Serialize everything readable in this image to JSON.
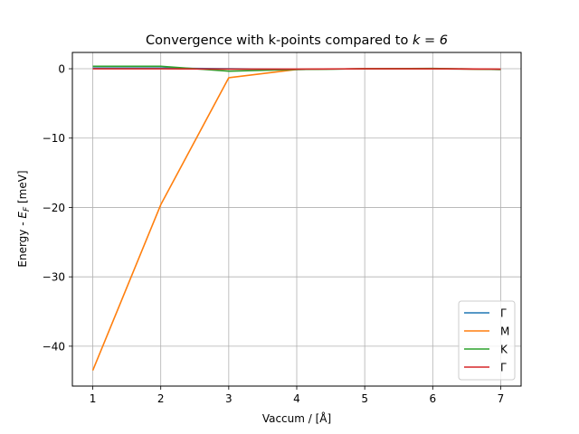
{
  "chart_data": {
    "type": "line",
    "title_prefix": "Convergence with k-points compared to ",
    "title_math": "k = 6",
    "xlabel": "Vaccum / [Å]",
    "ylabel_prefix": "Energy - ",
    "ylabel_math": "E",
    "ylabel_sub": "F",
    "ylabel_suffix": " [meV]",
    "xlim": [
      0.7,
      7.3
    ],
    "ylim": [
      -45.75,
      2.35
    ],
    "xticks": [
      1,
      2,
      3,
      4,
      5,
      6,
      7
    ],
    "yticks": [
      0,
      -10,
      -20,
      -30,
      -40
    ],
    "ytick_labels": [
      "0",
      "−10",
      "−20",
      "−30",
      "−40"
    ],
    "grid": true,
    "legend_position": "lower-right",
    "x": [
      1,
      2,
      3,
      4,
      5,
      6,
      7
    ],
    "series": [
      {
        "name": "Γ",
        "color": "#1f77b4",
        "values": [
          0.1,
          0.1,
          0.0,
          -0.1,
          0.0,
          0.0,
          -0.1
        ]
      },
      {
        "name": "M",
        "color": "#ff7f0e",
        "values": [
          -43.5,
          -19.6,
          -1.3,
          -0.1,
          0.0,
          0.0,
          -0.1
        ]
      },
      {
        "name": "K",
        "color": "#2ca02c",
        "values": [
          0.35,
          0.35,
          -0.35,
          -0.1,
          0.0,
          0.05,
          -0.1
        ]
      },
      {
        "name": "Γ",
        "color": "#d62728",
        "values": [
          0.0,
          0.0,
          -0.05,
          -0.05,
          0.0,
          0.0,
          -0.05
        ]
      }
    ]
  }
}
